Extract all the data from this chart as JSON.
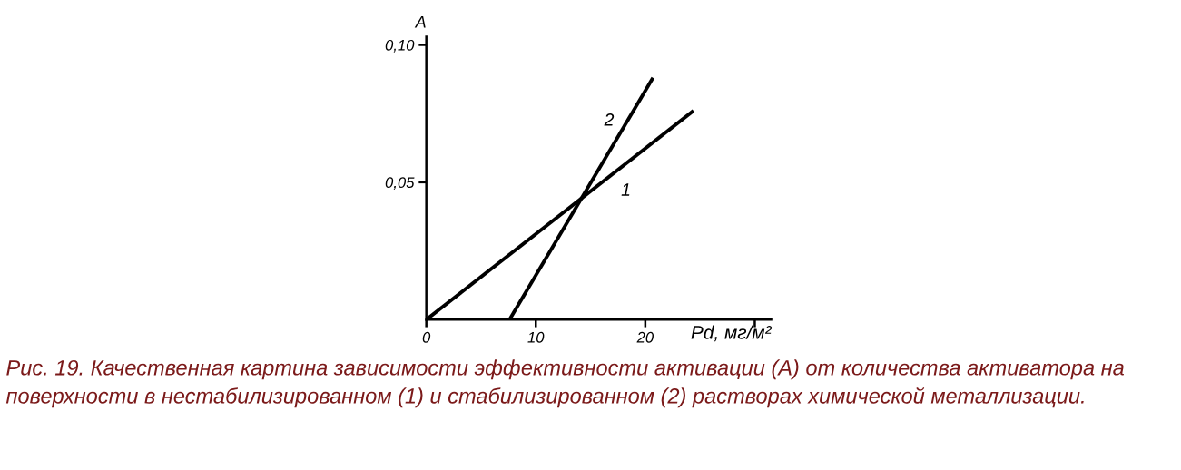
{
  "chart_data": {
    "type": "line",
    "xlabel": "Pd, мг/м²",
    "ylabel": "A",
    "xlim": [
      0,
      31.5
    ],
    "ylim": [
      0,
      0.103
    ],
    "xticks": [
      {
        "value": 0,
        "label": "0"
      },
      10,
      20,
      {
        "value": 30,
        "label": null
      }
    ],
    "yticks": [
      {
        "value": 0.05,
        "label": "0,05"
      },
      {
        "value": 0.1,
        "label": "0,10"
      }
    ],
    "grid": false,
    "legend": false,
    "marker": "none",
    "line_style": "solid",
    "series": [
      {
        "name": "1",
        "color": "#000000",
        "x": [
          0,
          24.4
        ],
        "values": [
          0,
          0.076
        ]
      },
      {
        "name": "2",
        "color": "#000000",
        "x": [
          7.6,
          20.7
        ],
        "values": [
          0,
          0.088
        ]
      }
    ],
    "annotations": [
      "Рис. 19. Качественная картина зависимости эффективности активации (А) от количества активатора на поверхности в нестабилизированном (1) и стабилизированном (2) растворах химической металлизации."
    ]
  }
}
